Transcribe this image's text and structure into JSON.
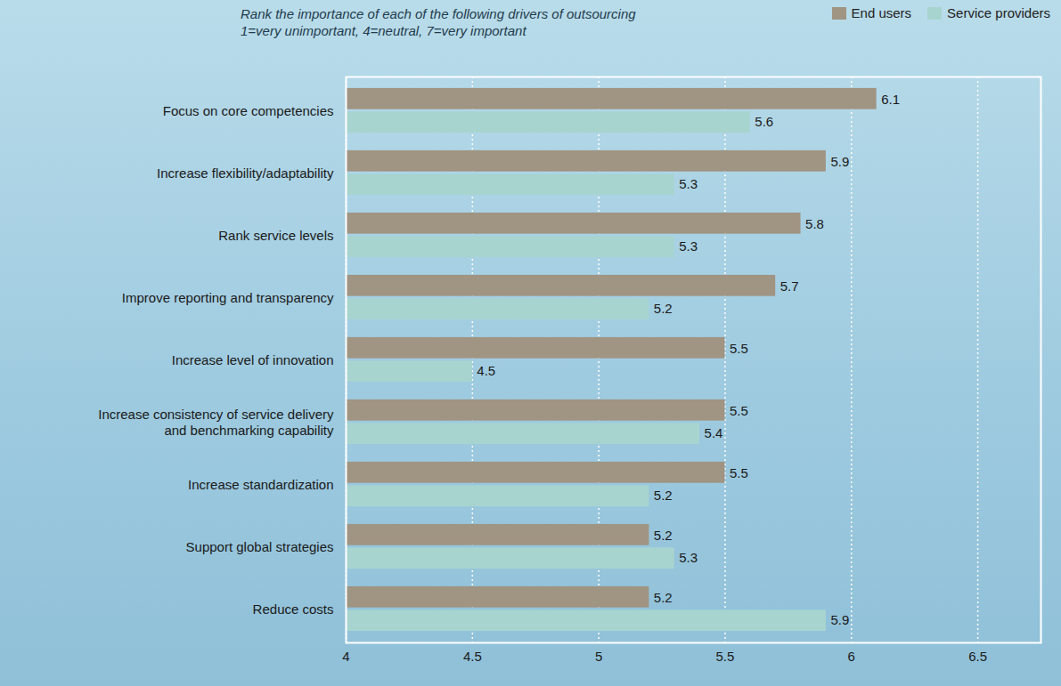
{
  "chart_data": {
    "type": "bar",
    "orientation": "horizontal",
    "subtitle": "Rank the importance of each of the following drivers of outsourcing",
    "annotations": [
      "1=very unimportant, 4=neutral, 7=very important"
    ],
    "categories": [
      "Focus on core competencies",
      "Increase flexibility/adaptability",
      "Rank service levels",
      "Improve reporting and transparency",
      "Increase level of innovation",
      "Increase consistency of service delivery and benchmarking capability",
      "Increase standardization",
      "Support global strategies",
      "Reduce costs"
    ],
    "series": [
      {
        "name": "End users",
        "color": "#a09482",
        "values": [
          6.1,
          5.9,
          5.8,
          5.7,
          5.5,
          5.5,
          5.5,
          5.2,
          5.2
        ]
      },
      {
        "name": "Service providers",
        "color": "#a8d4d0",
        "values": [
          5.6,
          5.3,
          5.3,
          5.2,
          4.5,
          5.4,
          5.2,
          5.3,
          5.9
        ]
      }
    ],
    "xlim": [
      4,
      6.75
    ],
    "xticks": [
      4,
      4.5,
      5,
      5.5,
      6,
      6.5
    ],
    "grid": true,
    "legend": "top-right",
    "data_labels": true
  }
}
